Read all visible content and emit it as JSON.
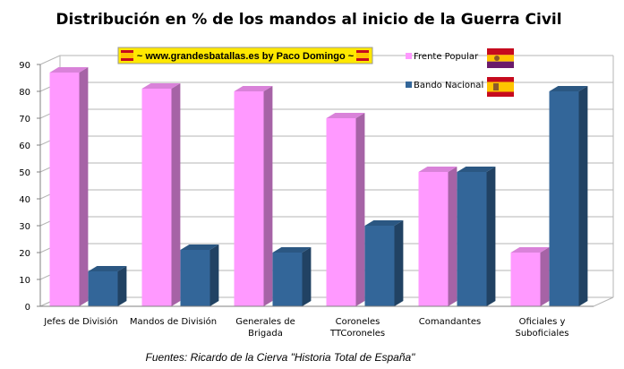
{
  "chart_data": {
    "type": "bar",
    "title": "Distribución en % de los mandos al inicio de la Guerra Civil",
    "categories": [
      [
        "Jefes de División"
      ],
      [
        "Mandos de División"
      ],
      [
        "Generales de",
        "Brigada"
      ],
      [
        "Coroneles",
        "TTCoroneles"
      ],
      [
        "Comandantes"
      ],
      [
        "Oficiales y",
        "Suboficiales"
      ]
    ],
    "series": [
      {
        "name": "Frente Popular",
        "values": [
          87,
          81,
          80,
          70,
          50,
          20
        ],
        "color": "#ff99ff",
        "flag": "republican-flag"
      },
      {
        "name": "Bando Nacional",
        "values": [
          13,
          21,
          20,
          30,
          50,
          80
        ],
        "color": "#336699",
        "flag": "spanish-flag"
      }
    ],
    "ylim": [
      0,
      90
    ],
    "yticks": [
      0,
      10,
      20,
      30,
      40,
      50,
      60,
      70,
      80,
      90
    ],
    "grid": true,
    "legend_position": "top-right",
    "style_3d": true
  },
  "banner": {
    "text": "~  www.grandesbatallas.es   by Paco Domingo  ~",
    "background": "#ffe800"
  },
  "source": "Fuentes: Ricardo de la Cierva \"Historia Total de España\""
}
